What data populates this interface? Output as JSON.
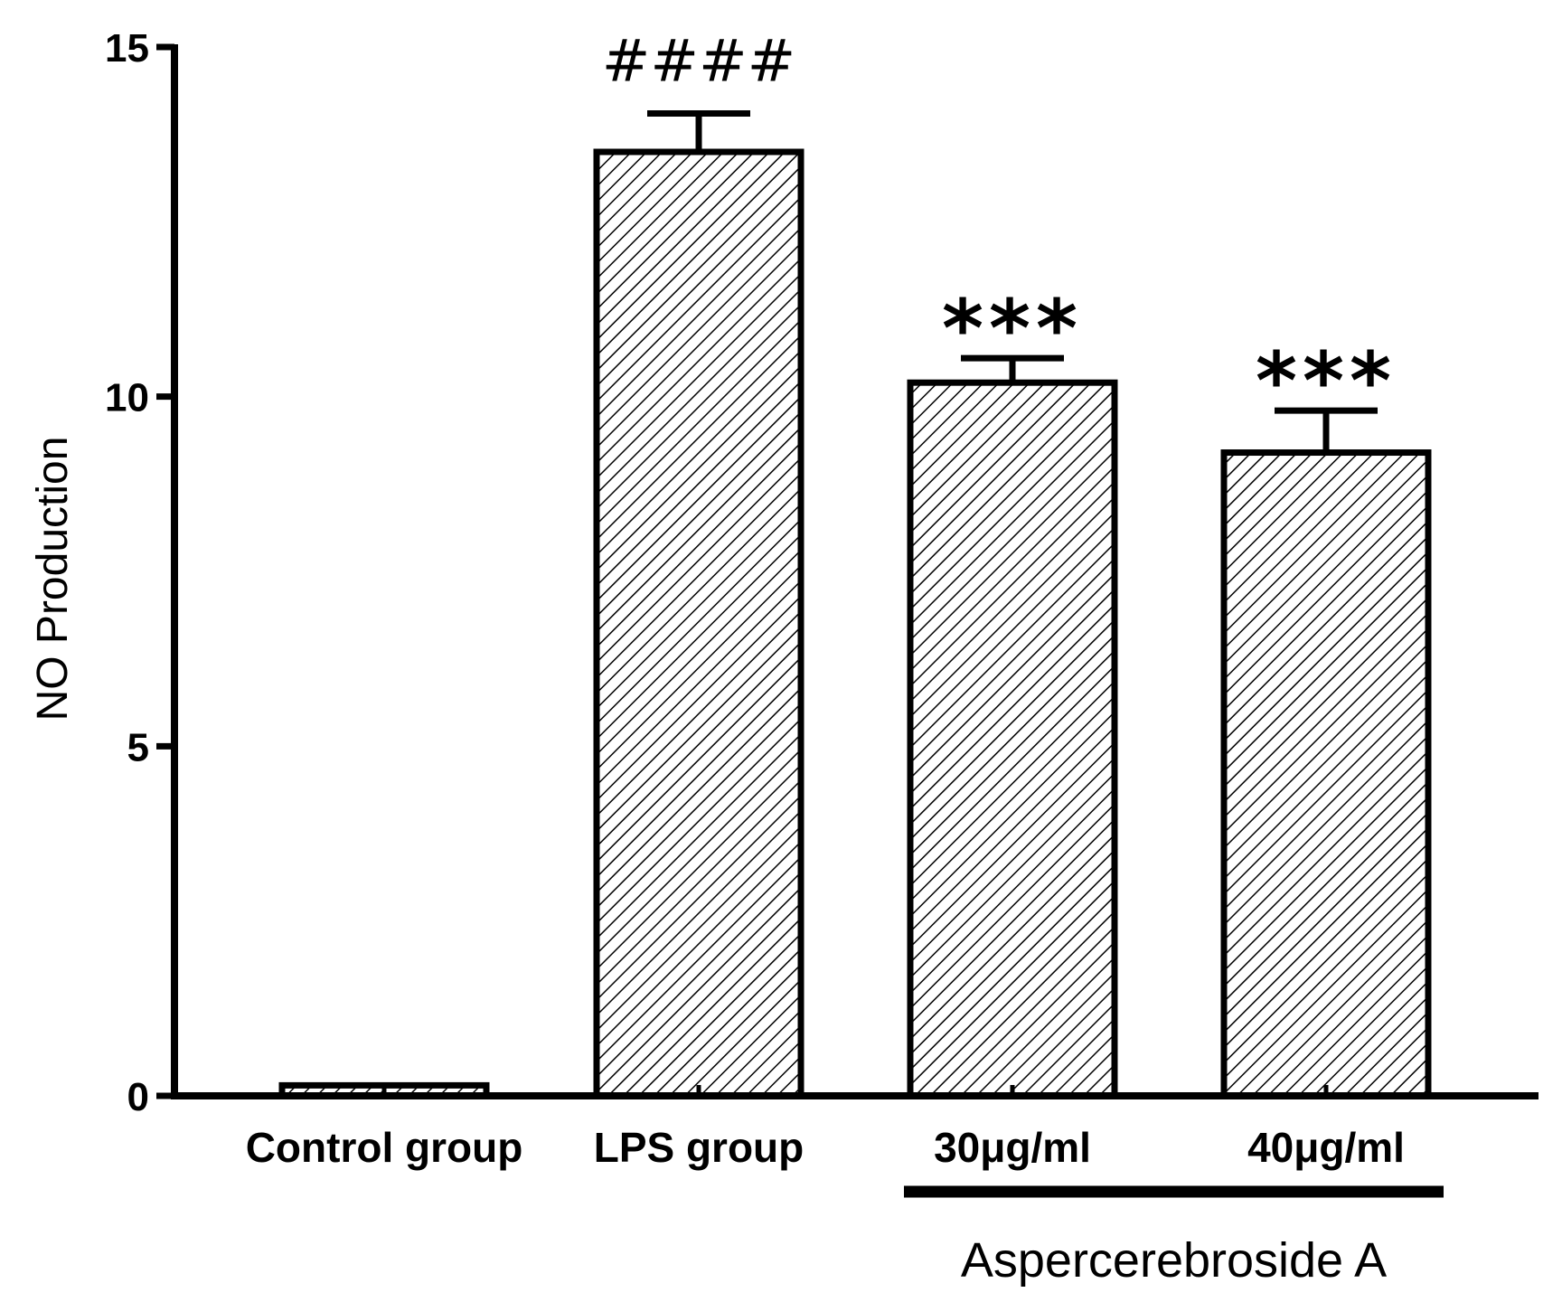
{
  "chart_data": {
    "type": "bar",
    "title": "",
    "xlabel": "",
    "ylabel": "NO Production",
    "ylim": [
      0,
      15
    ],
    "yticks": [
      0,
      5,
      10,
      15
    ],
    "categories": [
      "Control group",
      "LPS group",
      "30μg/ml",
      "40μg/ml"
    ],
    "values": [
      0.15,
      13.5,
      10.2,
      9.2
    ],
    "errors": [
      0,
      0.55,
      0.35,
      0.6
    ],
    "significance": [
      "",
      "####",
      "***",
      "***"
    ],
    "fill_pattern": "diagonal-hatch",
    "group_bracket": {
      "label": "Aspercerebroside A",
      "from_category": 2,
      "to_category": 3
    }
  }
}
